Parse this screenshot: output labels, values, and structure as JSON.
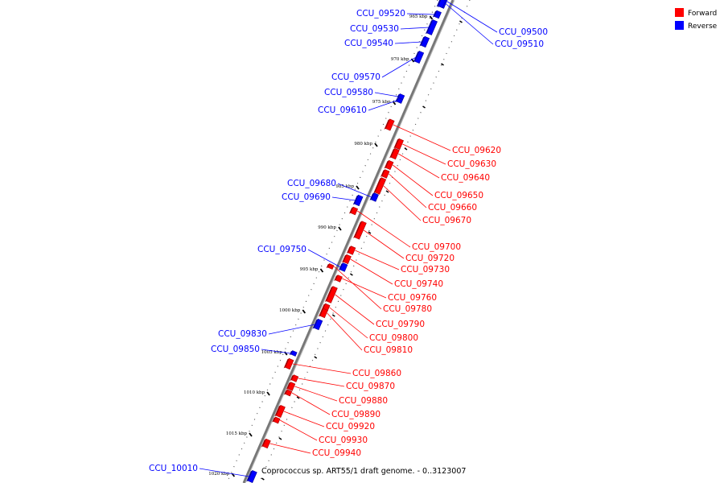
{
  "caption": "Coprococcus sp. ART55/1 draft genome. - 0..3123007",
  "legend": [
    {
      "label": "Forward",
      "color": "#ff0000"
    },
    {
      "label": "Reverse",
      "color": "#0000ff"
    }
  ],
  "colors": {
    "forward": "#ff0000",
    "reverse": "#0000ff",
    "backbone": "#808080"
  },
  "kbp_labels": [
    "965 kbp",
    "970 kbp",
    "975 kbp",
    "980 kbp",
    "985 kbp",
    "990 kbp",
    "995 kbp",
    "1000 kbp",
    "1005 kbp",
    "1010 kbp",
    "1015 kbp",
    "1020 kbp"
  ],
  "genes": [
    {
      "name": "CCU_09500",
      "strand": "reverse"
    },
    {
      "name": "CCU_09510",
      "strand": "reverse"
    },
    {
      "name": "CCU_09520",
      "strand": "reverse"
    },
    {
      "name": "CCU_09530",
      "strand": "reverse"
    },
    {
      "name": "CCU_09540",
      "strand": "reverse"
    },
    {
      "name": "CCU_09570",
      "strand": "reverse"
    },
    {
      "name": "CCU_09580",
      "strand": "reverse"
    },
    {
      "name": "CCU_09610",
      "strand": "reverse"
    },
    {
      "name": "CCU_09620",
      "strand": "forward"
    },
    {
      "name": "CCU_09630",
      "strand": "forward"
    },
    {
      "name": "CCU_09640",
      "strand": "forward"
    },
    {
      "name": "CCU_09650",
      "strand": "forward"
    },
    {
      "name": "CCU_09660",
      "strand": "forward"
    },
    {
      "name": "CCU_09670",
      "strand": "forward"
    },
    {
      "name": "CCU_09680",
      "strand": "reverse"
    },
    {
      "name": "CCU_09690",
      "strand": "reverse"
    },
    {
      "name": "CCU_09700",
      "strand": "forward"
    },
    {
      "name": "CCU_09720",
      "strand": "forward"
    },
    {
      "name": "CCU_09730",
      "strand": "forward"
    },
    {
      "name": "CCU_09740",
      "strand": "forward"
    },
    {
      "name": "CCU_09750",
      "strand": "reverse"
    },
    {
      "name": "CCU_09760",
      "strand": "forward"
    },
    {
      "name": "CCU_09780",
      "strand": "forward"
    },
    {
      "name": "CCU_09790",
      "strand": "forward"
    },
    {
      "name": "CCU_09800",
      "strand": "forward"
    },
    {
      "name": "CCU_09810",
      "strand": "forward"
    },
    {
      "name": "CCU_09830",
      "strand": "reverse"
    },
    {
      "name": "CCU_09850",
      "strand": "reverse"
    },
    {
      "name": "CCU_09860",
      "strand": "forward"
    },
    {
      "name": "CCU_09870",
      "strand": "forward"
    },
    {
      "name": "CCU_09880",
      "strand": "forward"
    },
    {
      "name": "CCU_09890",
      "strand": "forward"
    },
    {
      "name": "CCU_09920",
      "strand": "forward"
    },
    {
      "name": "CCU_09930",
      "strand": "forward"
    },
    {
      "name": "CCU_09940",
      "strand": "forward"
    },
    {
      "name": "CCU_10010",
      "strand": "reverse"
    }
  ]
}
